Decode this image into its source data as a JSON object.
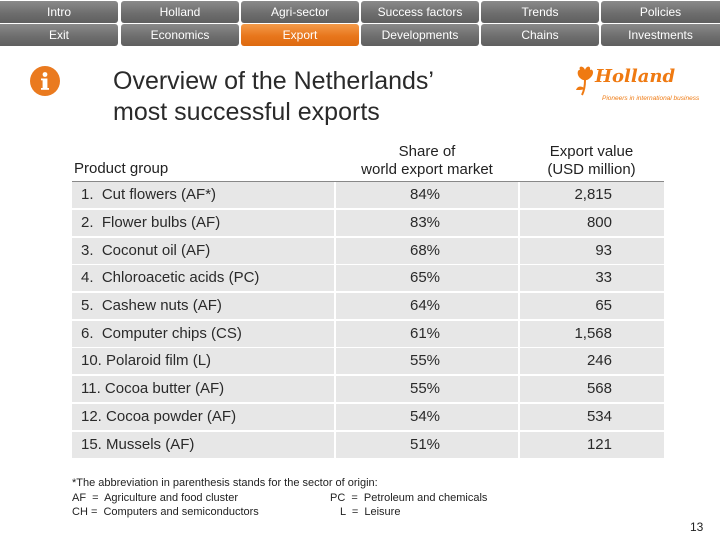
{
  "nav": {
    "row1": [
      "Intro",
      "Holland",
      "Agri-sector",
      "Success factors",
      "Trends",
      "Policies"
    ],
    "row2": [
      "Exit",
      "Economics",
      "Export",
      "Developments",
      "Chains",
      "Investments"
    ],
    "active": "Export"
  },
  "icons": {
    "info": "info-icon",
    "logo": "holland-tulip-logo"
  },
  "title": {
    "line1": "Overview of the Netherlands’",
    "line2": "most successful exports"
  },
  "logo": {
    "wordmark": "Holland",
    "tagline": "Pioneers in international business"
  },
  "table": {
    "headers": {
      "product_group": "Product group",
      "share_line1": "Share of",
      "share_line2": "world export market",
      "value_line1": "Export value",
      "value_line2": "(USD million)"
    },
    "rows": [
      {
        "product": "1.  Cut flowers (AF*)",
        "share": "84%",
        "value": "2,815"
      },
      {
        "product": "2.  Flower bulbs (AF)",
        "share": "83%",
        "value": "800"
      },
      {
        "product": "3.  Coconut oil (AF)",
        "share": "68%",
        "value": "93"
      },
      {
        "product": "4.  Chloroacetic acids (PC)",
        "share": "65%",
        "value": "33"
      },
      {
        "product": "5.  Cashew nuts (AF)",
        "share": "64%",
        "value": "65"
      },
      {
        "product": "6.  Computer chips (CS)",
        "share": "61%",
        "value": "1,568"
      },
      {
        "product": "10. Polaroid film (L)",
        "share": "55%",
        "value": "246"
      },
      {
        "product": "11. Cocoa butter (AF)",
        "share": "55%",
        "value": "568"
      },
      {
        "product": "12. Cocoa powder (AF)",
        "share": "54%",
        "value": "534"
      },
      {
        "product": "15. Mussels (AF)",
        "share": "51%",
        "value": "121"
      }
    ]
  },
  "footnote": {
    "line1": "*The abbreviation in parenthesis stands for the sector of origin:",
    "af": "AF  =  Agriculture and food cluster",
    "pc": "PC  =  Petroleum and chemicals",
    "cs": "CH =  Computers and semiconductors",
    "l": "L  =  Leisure"
  },
  "page_number": "13",
  "colors": {
    "accent": "#e8761c",
    "nav_grey": "#6e6e6e",
    "row_bg": "#e7e7e7"
  }
}
